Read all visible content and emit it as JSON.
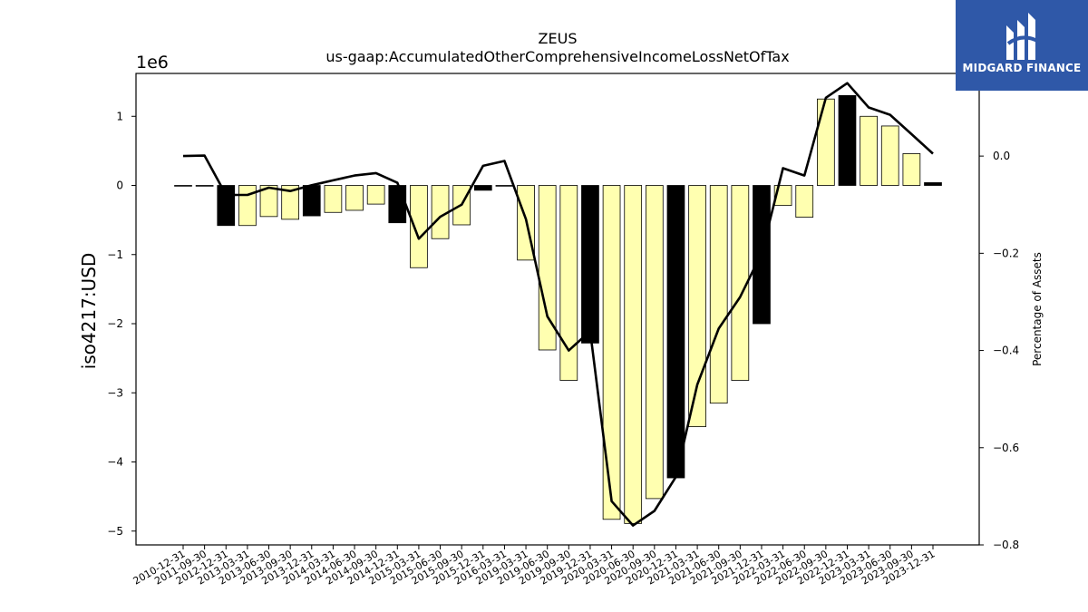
{
  "chart_data": {
    "type": "bar+line",
    "title": "ZEUS",
    "subtitle": "us-gaap:AccumulatedOtherComprehensiveIncomeLossNetOfTax",
    "ylabel": "iso4217:USD",
    "y_offset_label": "1e6",
    "y2label": "Percentage of Assets",
    "ylim": [
      -5.2,
      1.62
    ],
    "y2lim": [
      -0.8,
      0.17
    ],
    "yticks": [
      1,
      0,
      -1,
      -2,
      -3,
      -4,
      -5
    ],
    "y2ticks": [
      0.0,
      -0.2,
      -0.4,
      -0.6,
      -0.8
    ],
    "categories": [
      "2010-12-31",
      "2011-09-30",
      "2012-12-31",
      "2013-03-31",
      "2013-06-30",
      "2013-09-30",
      "2013-12-31",
      "2014-03-31",
      "2014-06-30",
      "2014-09-30",
      "2014-12-31",
      "2015-03-31",
      "2015-06-30",
      "2015-09-30",
      "2015-12-31",
      "2016-03-31",
      "2019-03-31",
      "2019-06-30",
      "2019-09-30",
      "2019-12-31",
      "2020-03-31",
      "2020-06-30",
      "2020-09-30",
      "2020-12-31",
      "2021-03-31",
      "2021-06-30",
      "2021-09-30",
      "2021-12-31",
      "2022-03-31",
      "2022-06-30",
      "2022-09-30",
      "2022-12-31",
      "2023-03-31",
      "2023-06-30",
      "2023-09-30",
      "2023-12-31"
    ],
    "series": [
      {
        "kind": "bar",
        "values": [
          0.0,
          0.0,
          -0.58,
          -0.58,
          -0.45,
          -0.49,
          -0.44,
          -0.39,
          -0.36,
          -0.27,
          -0.54,
          -1.19,
          -0.77,
          -0.57,
          -0.07,
          -0.01,
          -1.08,
          -2.38,
          -2.82,
          -2.28,
          -4.83,
          -4.89,
          -4.53,
          -4.23,
          -3.49,
          -3.15,
          -2.82,
          -2.0,
          -0.29,
          -0.46,
          1.25,
          1.3,
          1.0,
          0.86,
          0.46,
          0.04
        ],
        "fiscal_year_end": [
          false,
          true,
          true,
          false,
          false,
          false,
          true,
          false,
          false,
          false,
          true,
          false,
          false,
          false,
          true,
          true,
          false,
          false,
          false,
          true,
          false,
          false,
          false,
          true,
          false,
          false,
          false,
          true,
          false,
          false,
          false,
          true,
          false,
          false,
          false,
          true
        ]
      },
      {
        "kind": "line",
        "axis": "right",
        "values": [
          0.0,
          0.001,
          -0.08,
          -0.08,
          -0.065,
          -0.072,
          -0.06,
          -0.05,
          -0.04,
          -0.035,
          -0.055,
          -0.17,
          -0.125,
          -0.1,
          -0.02,
          -0.01,
          -0.13,
          -0.33,
          -0.4,
          -0.36,
          -0.71,
          -0.76,
          -0.73,
          -0.66,
          -0.47,
          -0.355,
          -0.29,
          -0.2,
          -0.025,
          -0.04,
          0.12,
          0.15,
          0.1,
          0.085,
          0.045,
          0.005
        ]
      }
    ],
    "colors": {
      "bar_fill": "#ffffb0",
      "bar_year_end": "#000000",
      "line": "#000000"
    },
    "grid": false
  },
  "logo": {
    "text": "MIDGARD FINANCE",
    "background": "#2f58a8"
  }
}
